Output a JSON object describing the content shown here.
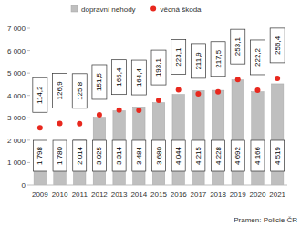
{
  "chart_data": {
    "type": "bar",
    "categories": [
      "2009",
      "2010",
      "2011",
      "2012",
      "2013",
      "2014",
      "2015",
      "2016",
      "2017",
      "2018",
      "2019",
      "2020",
      "2021"
    ],
    "series": [
      {
        "name": "dopravní nehody",
        "type": "bar",
        "color": "#bfbfbf",
        "values": [
          1798,
          1780,
          2014,
          3025,
          3314,
          3484,
          3680,
          4044,
          4215,
          4228,
          4692,
          4166,
          4519
        ],
        "value_labels": [
          "1 798",
          "1 780",
          "2 014",
          "3 025",
          "3 314",
          "3 484",
          "3 680",
          "4 044",
          "4 215",
          "4 228",
          "4 692",
          "4 166",
          "4 519"
        ]
      },
      {
        "name": "věcná škoda",
        "type": "scatter",
        "color": "#e8281e",
        "marker": "circle",
        "axis": "y2",
        "values": [
          114.2,
          126.9,
          125.8,
          151.5,
          165.4,
          164.4,
          193.1,
          223.1,
          211.9,
          217.5,
          253.1,
          222.2,
          256.4
        ],
        "value_labels": [
          "114,2",
          "126,9",
          "125,8",
          "151,5",
          "165,4",
          "164,4",
          "193,1",
          "223,1",
          "211,9",
          "217,5",
          "253,1",
          "222,2",
          "256,4"
        ]
      }
    ],
    "ylim": [
      0,
      7000
    ],
    "yticks": [
      0,
      {
        "value": 1000,
        "label": "1 000"
      },
      {
        "value": 2000,
        "label": "2 000"
      },
      {
        "value": 3000,
        "label": "3 000"
      },
      {
        "value": 4000,
        "label": "4 000"
      },
      {
        "value": 5000,
        "label": "5 000"
      },
      {
        "value": 6000,
        "label": "6 000"
      },
      {
        "value": 7000,
        "label": "7 000"
      }
    ],
    "y2lim": [
      -50,
      400
    ],
    "data_labels": true,
    "grid": false,
    "legend": "top",
    "source": "Pramen: Policie ČR"
  }
}
